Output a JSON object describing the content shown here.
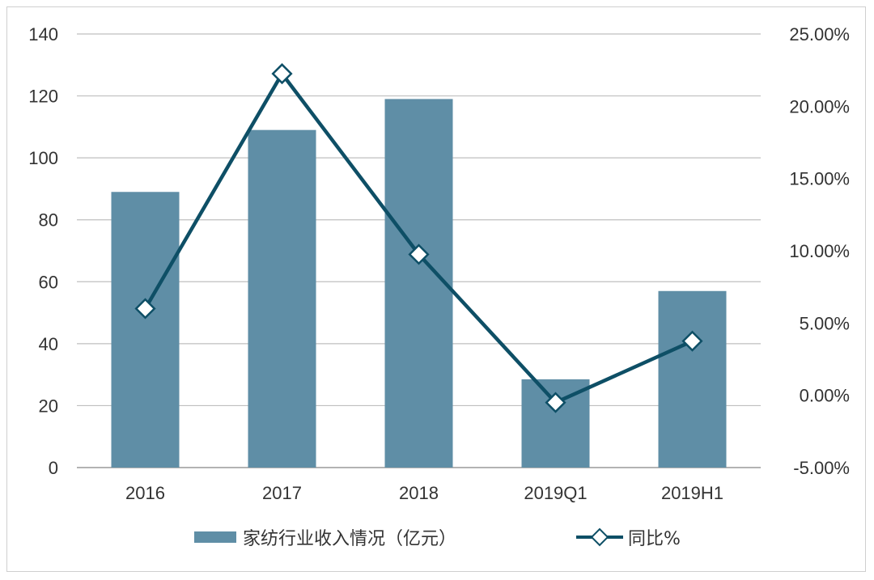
{
  "chart_data": {
    "type": "bar",
    "categories": [
      "2016",
      "2017",
      "2018",
      "2019Q1",
      "2019H1"
    ],
    "series": [
      {
        "name": "家纺行业收入情况（亿元）",
        "type": "bar",
        "axis": "left",
        "values": [
          89,
          109,
          119,
          28.5,
          57
        ]
      },
      {
        "name": "同比%",
        "type": "line",
        "axis": "right",
        "values": [
          0.06,
          0.2225,
          0.0975,
          -0.005,
          0.0375
        ]
      }
    ],
    "y_left": {
      "min": 0,
      "max": 140,
      "step": 20,
      "ticks": [
        "0",
        "20",
        "40",
        "60",
        "80",
        "100",
        "120",
        "140"
      ]
    },
    "y_right": {
      "min": -0.05,
      "max": 0.25,
      "step": 0.05,
      "ticks": [
        "-5.00%",
        "0.00%",
        "5.00%",
        "10.00%",
        "15.00%",
        "20.00%",
        "25.00%"
      ]
    },
    "grid": true,
    "legend_position": "bottom",
    "colors": {
      "bar": "#5f8ea6",
      "line": "#0e4f66",
      "grid": "#bfbfbf",
      "marker_fill": "#ffffff"
    }
  }
}
